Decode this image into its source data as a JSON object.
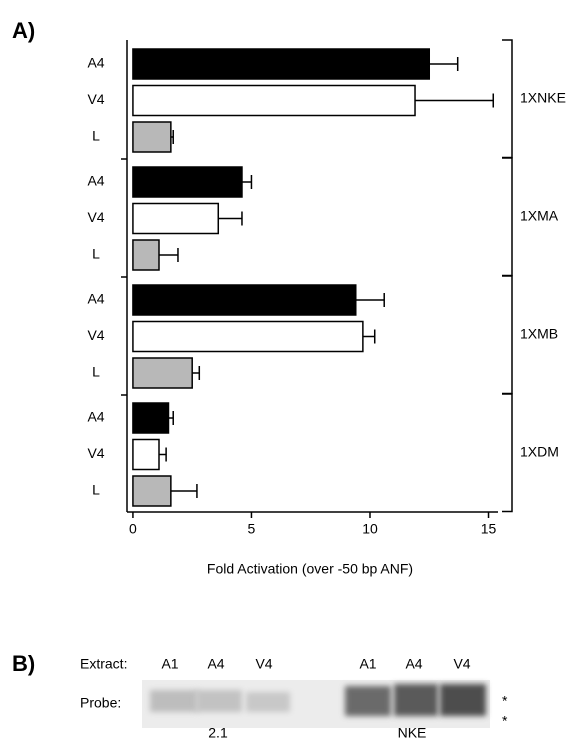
{
  "chart_data": {
    "type": "bar",
    "orientation": "horizontal",
    "panel_label": "A)",
    "x_label": "Fold Activation (over -50 bp ANF)",
    "xlim": [
      -0.25,
      15.4
    ],
    "xticks": [
      0,
      5,
      10,
      15
    ],
    "colors": [
      "#000000",
      "#ffffff",
      "#b8b8b8"
    ],
    "groups": [
      {
        "name": "1XNKE",
        "categories": [
          "A4",
          "V4",
          "L"
        ],
        "values": [
          12.5,
          11.9,
          1.6
        ],
        "errors": [
          1.2,
          3.3,
          0.1
        ]
      },
      {
        "name": "1XMA",
        "categories": [
          "A4",
          "V4",
          "L"
        ],
        "values": [
          4.6,
          3.6,
          1.1
        ],
        "errors": [
          0.4,
          1.0,
          0.8
        ]
      },
      {
        "name": "1XMB",
        "categories": [
          "A4",
          "V4",
          "L"
        ],
        "values": [
          9.4,
          9.7,
          2.5
        ],
        "errors": [
          1.2,
          0.5,
          0.3
        ]
      },
      {
        "name": "1XDM",
        "categories": [
          "A4",
          "V4",
          "L"
        ],
        "values": [
          1.5,
          1.1,
          1.6
        ],
        "errors": [
          0.2,
          0.3,
          1.1
        ]
      }
    ]
  },
  "panel_b": {
    "panel_label": "B)",
    "extract_label": "Extract:",
    "lanes": [
      "A1",
      "A4",
      "V4",
      "A1",
      "A4",
      "V4"
    ],
    "probe_label": "Probe:",
    "probes": [
      "2.1",
      "NKE"
    ],
    "markers": [
      "*",
      "*"
    ]
  }
}
